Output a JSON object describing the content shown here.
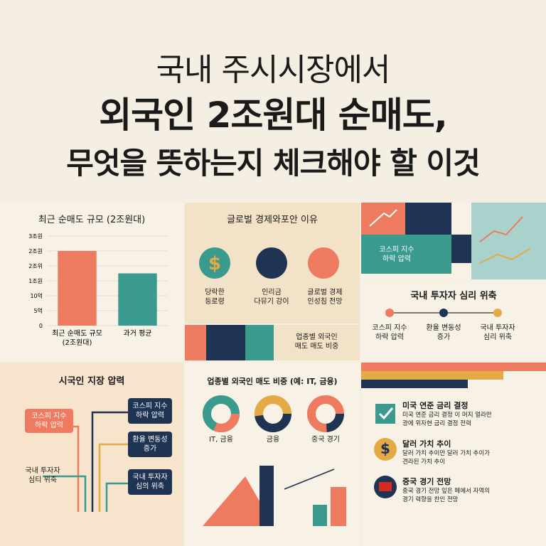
{
  "header": {
    "line1": "국내 주시시장에서",
    "line2": "외국인 2조원대 순매도,",
    "line3": "무엇을 뜻하는지 체크해야 할 이것"
  },
  "bar_chart": {
    "type": "bar",
    "title": "최근 순매도 규모 (2조원대)",
    "categories": [
      "최근 순매도 규모\n(2조원대)",
      "과거 평균"
    ],
    "values": [
      2.5,
      1.75
    ],
    "colors": [
      "#ee7a60",
      "#3a9a8e"
    ],
    "ylim": [
      0,
      3
    ],
    "yticks": [
      {
        "value": 0,
        "label": "0"
      },
      {
        "value": 0.5,
        "label": "5억"
      },
      {
        "value": 1,
        "label": "10억"
      },
      {
        "value": 1.5,
        "label": "1조원"
      },
      {
        "value": 2,
        "label": "2조위"
      },
      {
        "value": 2.5,
        "label": "2조원"
      },
      {
        "value": 3,
        "label": "3조원"
      }
    ]
  },
  "global": {
    "title": "글로벌 경제와포안 이유",
    "icon": "$",
    "items": [
      "당락한\n등로령",
      "인리금\n다뮤기 강이",
      "글로벌 경제\n인성침 전망"
    ]
  },
  "kospi_box": "코스피 지수\n하락 압력",
  "sentiment": {
    "title": "국내 투자자 심리 위축",
    "items": [
      "코스피 지수\n하락 압력",
      "환율 변동성\n증가",
      "국내 투자자\n심리 위축"
    ]
  },
  "sector_strip": "업종별 외국인\n매도 매도 비중",
  "pressure": {
    "title": "시국인 지장 압력",
    "left": [
      "코스피 지수\n하락 압력",
      "국내 투자자\n심티 위축"
    ],
    "right": [
      "코스피 지수\n하락 압력",
      "환율 변동성\n증가",
      "국내 투자자\n심의 위축"
    ]
  },
  "sector": {
    "title": "업종별 외국인 매도 비중 (예: IT, 금융)",
    "labels": [
      "IT, 금융",
      "금융",
      "중국 경기"
    ]
  },
  "factors": [
    {
      "title": "미국 연준 금리 결정",
      "desc": "미국 연준 금리 결정 이 머지 얼라만\n광에 위자현 금리 결정 전력"
    },
    {
      "icon": "$",
      "title": "달러 가치 추이",
      "desc": "달러 가치 추이만 달러 가치 추이가\n견라된 가치 추이"
    },
    {
      "title": "중국 경기 전망",
      "desc": "중국 경기 전망 잎은 메에서 자역의\n경기 력향을 찬인 전망"
    }
  ]
}
